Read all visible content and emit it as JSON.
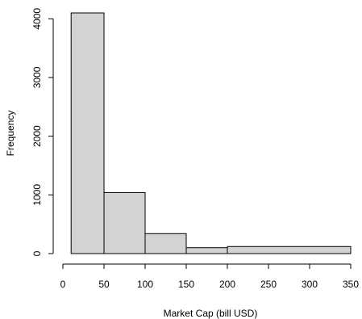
{
  "chart_data": {
    "type": "bar",
    "subtype": "histogram",
    "title": "",
    "xlabel": "Market Cap (bill USD)",
    "ylabel": "Frequency",
    "xlim": [
      0,
      350
    ],
    "ylim": [
      0,
      4100
    ],
    "grid": false,
    "bar_color": "#d3d3d3",
    "border_color": "#000000",
    "x_ticks": [
      "0",
      "50",
      "100",
      "150",
      "200",
      "250",
      "300",
      "350"
    ],
    "y_ticks": [
      "0",
      "1000",
      "2000",
      "3000",
      "4000"
    ],
    "bins": [
      {
        "from": 10,
        "to": 50,
        "value": 4100
      },
      {
        "from": 50,
        "to": 100,
        "value": 1040
      },
      {
        "from": 100,
        "to": 150,
        "value": 340
      },
      {
        "from": 150,
        "to": 200,
        "value": 100
      },
      {
        "from": 200,
        "to": 350,
        "value": 120
      }
    ]
  }
}
